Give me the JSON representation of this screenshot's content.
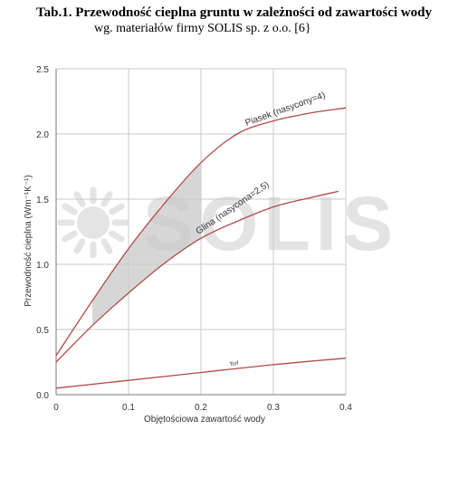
{
  "header": {
    "title": "Tab.1. Przewodność cieplna gruntu w zależności od zawartości wody",
    "subtitle": "wg. materiałów firmy SOLIS sp. z o.o. [6}"
  },
  "watermark": "SOLIS",
  "chart_data": {
    "type": "line",
    "xlabel": "Objętościowa zawartość wody",
    "ylabel": "Przewodność cieplna (Wm⁻¹K⁻¹)",
    "xlim": [
      0,
      0.4
    ],
    "ylim": [
      0,
      2.5
    ],
    "x_ticks": [
      "0",
      "0.1",
      "0.2",
      "0.3",
      "0.4"
    ],
    "y_ticks": [
      "0.0",
      "0.5",
      "1.0",
      "1.5",
      "2.0",
      "2.5"
    ],
    "grid": true,
    "line_color": "#b04a4a",
    "band_color": "#c8c8c8",
    "series": [
      {
        "name": "Piasek (nasycony=4)",
        "x": [
          0,
          0.05,
          0.1,
          0.15,
          0.2,
          0.25,
          0.3,
          0.35,
          0.4
        ],
        "y": [
          0.3,
          0.72,
          1.12,
          1.47,
          1.78,
          2.0,
          2.1,
          2.16,
          2.2
        ]
      },
      {
        "name": "Glina (nasycona=2,5)",
        "x": [
          0,
          0.05,
          0.1,
          0.15,
          0.2,
          0.25,
          0.3,
          0.35,
          0.39
        ],
        "y": [
          0.25,
          0.53,
          0.78,
          1.01,
          1.2,
          1.33,
          1.44,
          1.51,
          1.56
        ]
      },
      {
        "name": "Torf",
        "x": [
          0,
          0.1,
          0.2,
          0.3,
          0.4
        ],
        "y": [
          0.05,
          0.11,
          0.17,
          0.23,
          0.28
        ]
      }
    ]
  }
}
